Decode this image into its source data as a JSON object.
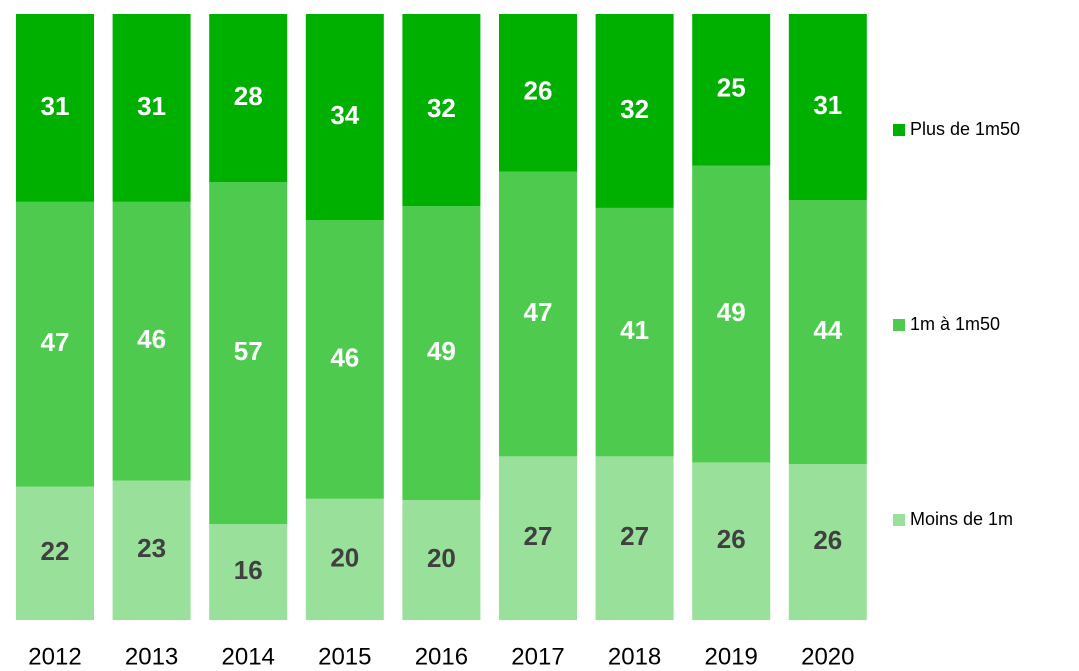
{
  "chart_data": {
    "type": "bar",
    "stacked": "percent",
    "categories": [
      "2012",
      "2013",
      "2014",
      "2015",
      "2016",
      "2017",
      "2018",
      "2019",
      "2020"
    ],
    "series": [
      {
        "name": "Moins de 1m",
        "color": "#99e09a",
        "label_color": "#404040",
        "values": [
          22,
          23,
          16,
          20,
          20,
          27,
          27,
          26,
          26
        ]
      },
      {
        "name": "1m à 1m50",
        "color": "#4ecb4e",
        "label_color": "#ffffff",
        "values": [
          47,
          46,
          57,
          46,
          49,
          47,
          41,
          49,
          44
        ]
      },
      {
        "name": "Plus de 1m50",
        "color": "#00b000",
        "label_color": "#ffffff",
        "values": [
          31,
          31,
          28,
          34,
          32,
          26,
          32,
          25,
          31
        ]
      }
    ],
    "legend": "right"
  }
}
